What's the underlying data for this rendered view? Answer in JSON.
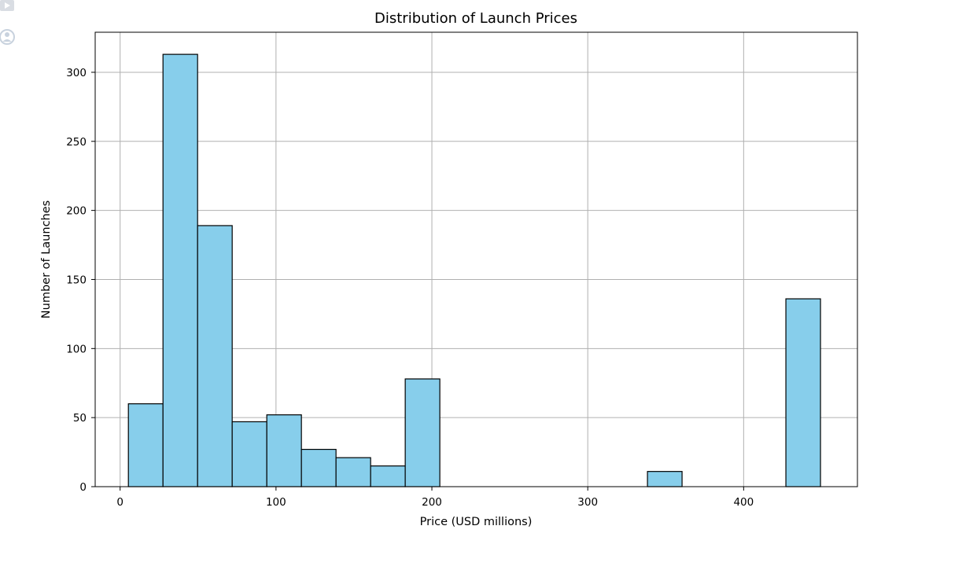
{
  "chart_data": {
    "type": "bar",
    "title": "Distribution of Launch Prices",
    "xlabel": "Price (USD millions)",
    "ylabel": "Number of Launches",
    "xlim": [
      -16,
      473
    ],
    "ylim": [
      0,
      329
    ],
    "xticks": [
      0,
      100,
      200,
      300,
      400
    ],
    "yticks": [
      0,
      50,
      100,
      150,
      200,
      250,
      300
    ],
    "grid": true,
    "bin_width": 22.2,
    "bins": [
      {
        "x0": 5.3,
        "count": 60
      },
      {
        "x0": 27.5,
        "count": 313
      },
      {
        "x0": 49.7,
        "count": 189
      },
      {
        "x0": 71.9,
        "count": 47
      },
      {
        "x0": 94.1,
        "count": 52
      },
      {
        "x0": 116.3,
        "count": 27
      },
      {
        "x0": 138.5,
        "count": 21
      },
      {
        "x0": 160.7,
        "count": 15
      },
      {
        "x0": 182.9,
        "count": 78
      },
      {
        "x0": 205.1,
        "count": 0
      },
      {
        "x0": 227.3,
        "count": 0
      },
      {
        "x0": 249.5,
        "count": 0
      },
      {
        "x0": 271.7,
        "count": 0
      },
      {
        "x0": 293.9,
        "count": 0
      },
      {
        "x0": 316.1,
        "count": 0
      },
      {
        "x0": 338.3,
        "count": 11
      },
      {
        "x0": 360.5,
        "count": 0
      },
      {
        "x0": 382.7,
        "count": 0
      },
      {
        "x0": 404.9,
        "count": 0
      },
      {
        "x0": 427.1,
        "count": 136
      }
    ],
    "bar_color": "#87ceeb",
    "edge_color": "#000000",
    "grid_color": "#b0b0b0"
  },
  "gutter": {
    "icons": [
      "play-icon",
      "user-circle-icon"
    ]
  }
}
